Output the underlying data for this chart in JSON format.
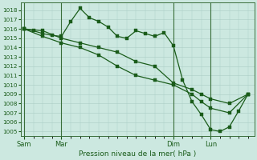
{
  "xlabel": "Pression niveau de la mer( hPa )",
  "ylim_min": 1004.5,
  "ylim_max": 1018.8,
  "yticks": [
    1005,
    1006,
    1007,
    1008,
    1009,
    1010,
    1011,
    1012,
    1013,
    1014,
    1015,
    1016,
    1017,
    1018
  ],
  "background_color": "#cce8e0",
  "grid_color": "#aaccc4",
  "line_color": "#1a5c1a",
  "xtick_labels": [
    "Sam",
    "Mar",
    "Dim",
    "Lun"
  ],
  "xtick_positions": [
    0,
    24,
    96,
    120
  ],
  "vline_positions": [
    0,
    24,
    96,
    120
  ],
  "xlim_min": -2,
  "xlim_max": 148,
  "series1_x": [
    0,
    6,
    12,
    18,
    24,
    30,
    36,
    42,
    48,
    54,
    60,
    66,
    72,
    78,
    84,
    90,
    96,
    102,
    108,
    114,
    120,
    126,
    132,
    138,
    144
  ],
  "series1_y": [
    1016.0,
    1015.8,
    1015.5,
    1015.3,
    1015.2,
    1016.8,
    1018.2,
    1017.2,
    1016.8,
    1016.2,
    1015.2,
    1015.0,
    1015.8,
    1015.5,
    1015.2,
    1015.6,
    1014.2,
    1010.5,
    1008.2,
    1006.8,
    1005.2,
    1005.0,
    1005.5,
    1007.2,
    1009.0
  ],
  "series2_x": [
    0,
    12,
    24,
    36,
    48,
    60,
    72,
    84,
    96,
    108,
    114,
    120,
    132,
    144
  ],
  "series2_y": [
    1016.0,
    1015.8,
    1015.0,
    1014.5,
    1014.0,
    1013.5,
    1012.5,
    1012.0,
    1010.2,
    1009.5,
    1009.0,
    1008.5,
    1008.0,
    1009.0
  ],
  "series3_x": [
    0,
    12,
    24,
    36,
    48,
    60,
    72,
    84,
    96,
    108,
    114,
    120,
    132,
    144
  ],
  "series3_y": [
    1016.0,
    1015.2,
    1014.5,
    1014.0,
    1013.2,
    1012.0,
    1011.0,
    1010.5,
    1010.0,
    1009.0,
    1008.2,
    1007.5,
    1007.0,
    1009.0
  ]
}
